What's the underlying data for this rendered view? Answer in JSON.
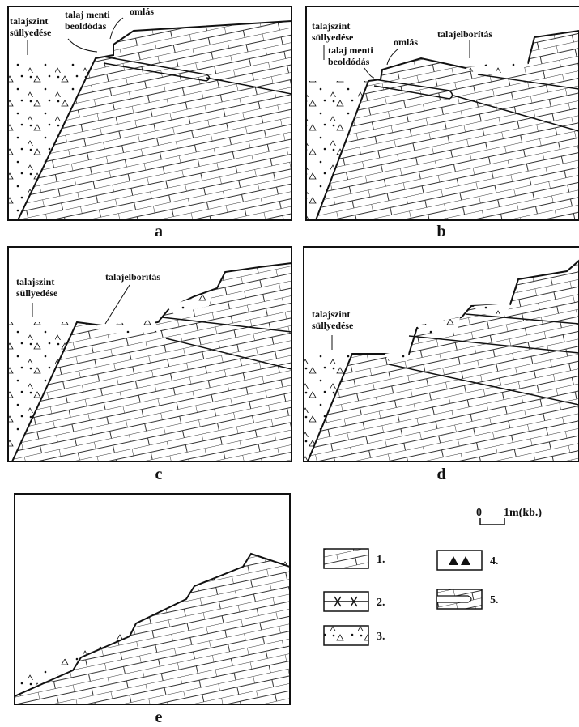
{
  "panels": [
    {
      "label": "a",
      "texts": [
        "talajszint",
        "süllyedése",
        "talaj menti",
        "beoldódás",
        "omlás"
      ]
    },
    {
      "label": "b",
      "texts": [
        "talajszint",
        "süllyedése",
        "talaj menti",
        "beoldódás",
        "omlás",
        "talajelborítás"
      ]
    },
    {
      "label": "c",
      "texts": [
        "talajszint",
        "süllyedése",
        "talajelborítás"
      ]
    },
    {
      "label": "d",
      "texts": [
        "talajszint",
        "süllyedése"
      ]
    },
    {
      "label": "e",
      "texts": []
    }
  ],
  "scale": {
    "start": "0",
    "length": "1m(kb.)"
  },
  "legend": [
    "1.",
    "2.",
    "3.",
    "4.",
    "5."
  ]
}
